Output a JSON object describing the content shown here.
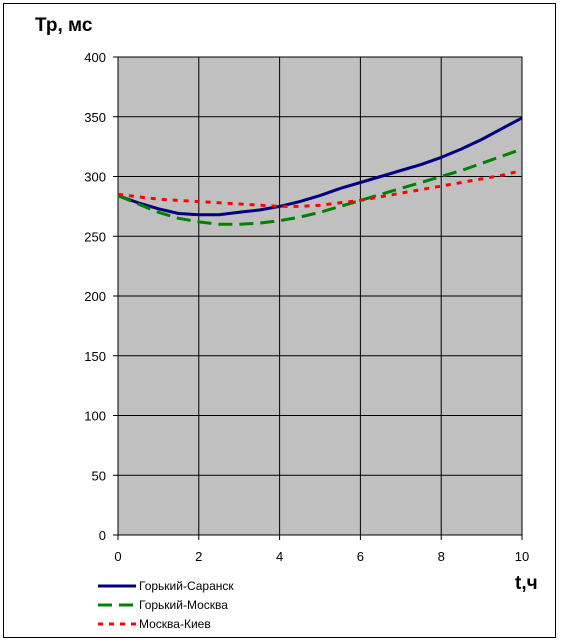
{
  "chart_data": {
    "type": "line",
    "ylabel": "Тр, мс",
    "xlabel": "t,ч",
    "xlim": [
      0,
      10
    ],
    "ylim": [
      0,
      400
    ],
    "x_ticks": [
      "0",
      "2",
      "4",
      "6",
      "8",
      "10"
    ],
    "y_ticks": [
      "0",
      "50",
      "100",
      "150",
      "200",
      "250",
      "300",
      "350",
      "400"
    ],
    "grid": true,
    "plot_background": "#c0c0c0",
    "legend_position": "bottom-left",
    "series": [
      {
        "name": "Горький-Саранск",
        "color": "#000080",
        "style": "solid",
        "x": [
          0,
          0.5,
          1,
          1.5,
          2,
          2.5,
          3,
          3.5,
          4,
          4.5,
          5,
          5.5,
          6,
          6.5,
          7,
          7.5,
          8,
          8.5,
          9,
          9.5,
          10
        ],
        "y": [
          284,
          278,
          273,
          269,
          268,
          268,
          270,
          272,
          275,
          279,
          284,
          290,
          295,
          300,
          305,
          310,
          316,
          323,
          331,
          340,
          349
        ]
      },
      {
        "name": "Горький-Москва",
        "color": "#008000",
        "style": "dashed",
        "x": [
          0,
          0.5,
          1,
          1.5,
          2,
          2.5,
          3,
          3.5,
          4,
          4.5,
          5,
          5.5,
          6,
          6.5,
          7,
          7.5,
          8,
          8.5,
          9,
          9.5,
          10
        ],
        "y": [
          284,
          277,
          270,
          265,
          262,
          260,
          260,
          261,
          263,
          266,
          270,
          275,
          280,
          285,
          290,
          295,
          300,
          305,
          311,
          317,
          323
        ]
      },
      {
        "name": "Москва-Киев",
        "color": "#ff0000",
        "style": "dotted",
        "x": [
          0,
          0.5,
          1,
          1.5,
          2,
          2.5,
          3,
          3.5,
          4,
          4.5,
          5,
          5.5,
          6,
          6.5,
          7,
          7.5,
          8,
          8.5,
          9,
          9.5,
          10
        ],
        "y": [
          285,
          283,
          281,
          280,
          279,
          278,
          277,
          276,
          275,
          275,
          276,
          278,
          280,
          283,
          286,
          289,
          292,
          295,
          298,
          301,
          305
        ]
      }
    ]
  }
}
